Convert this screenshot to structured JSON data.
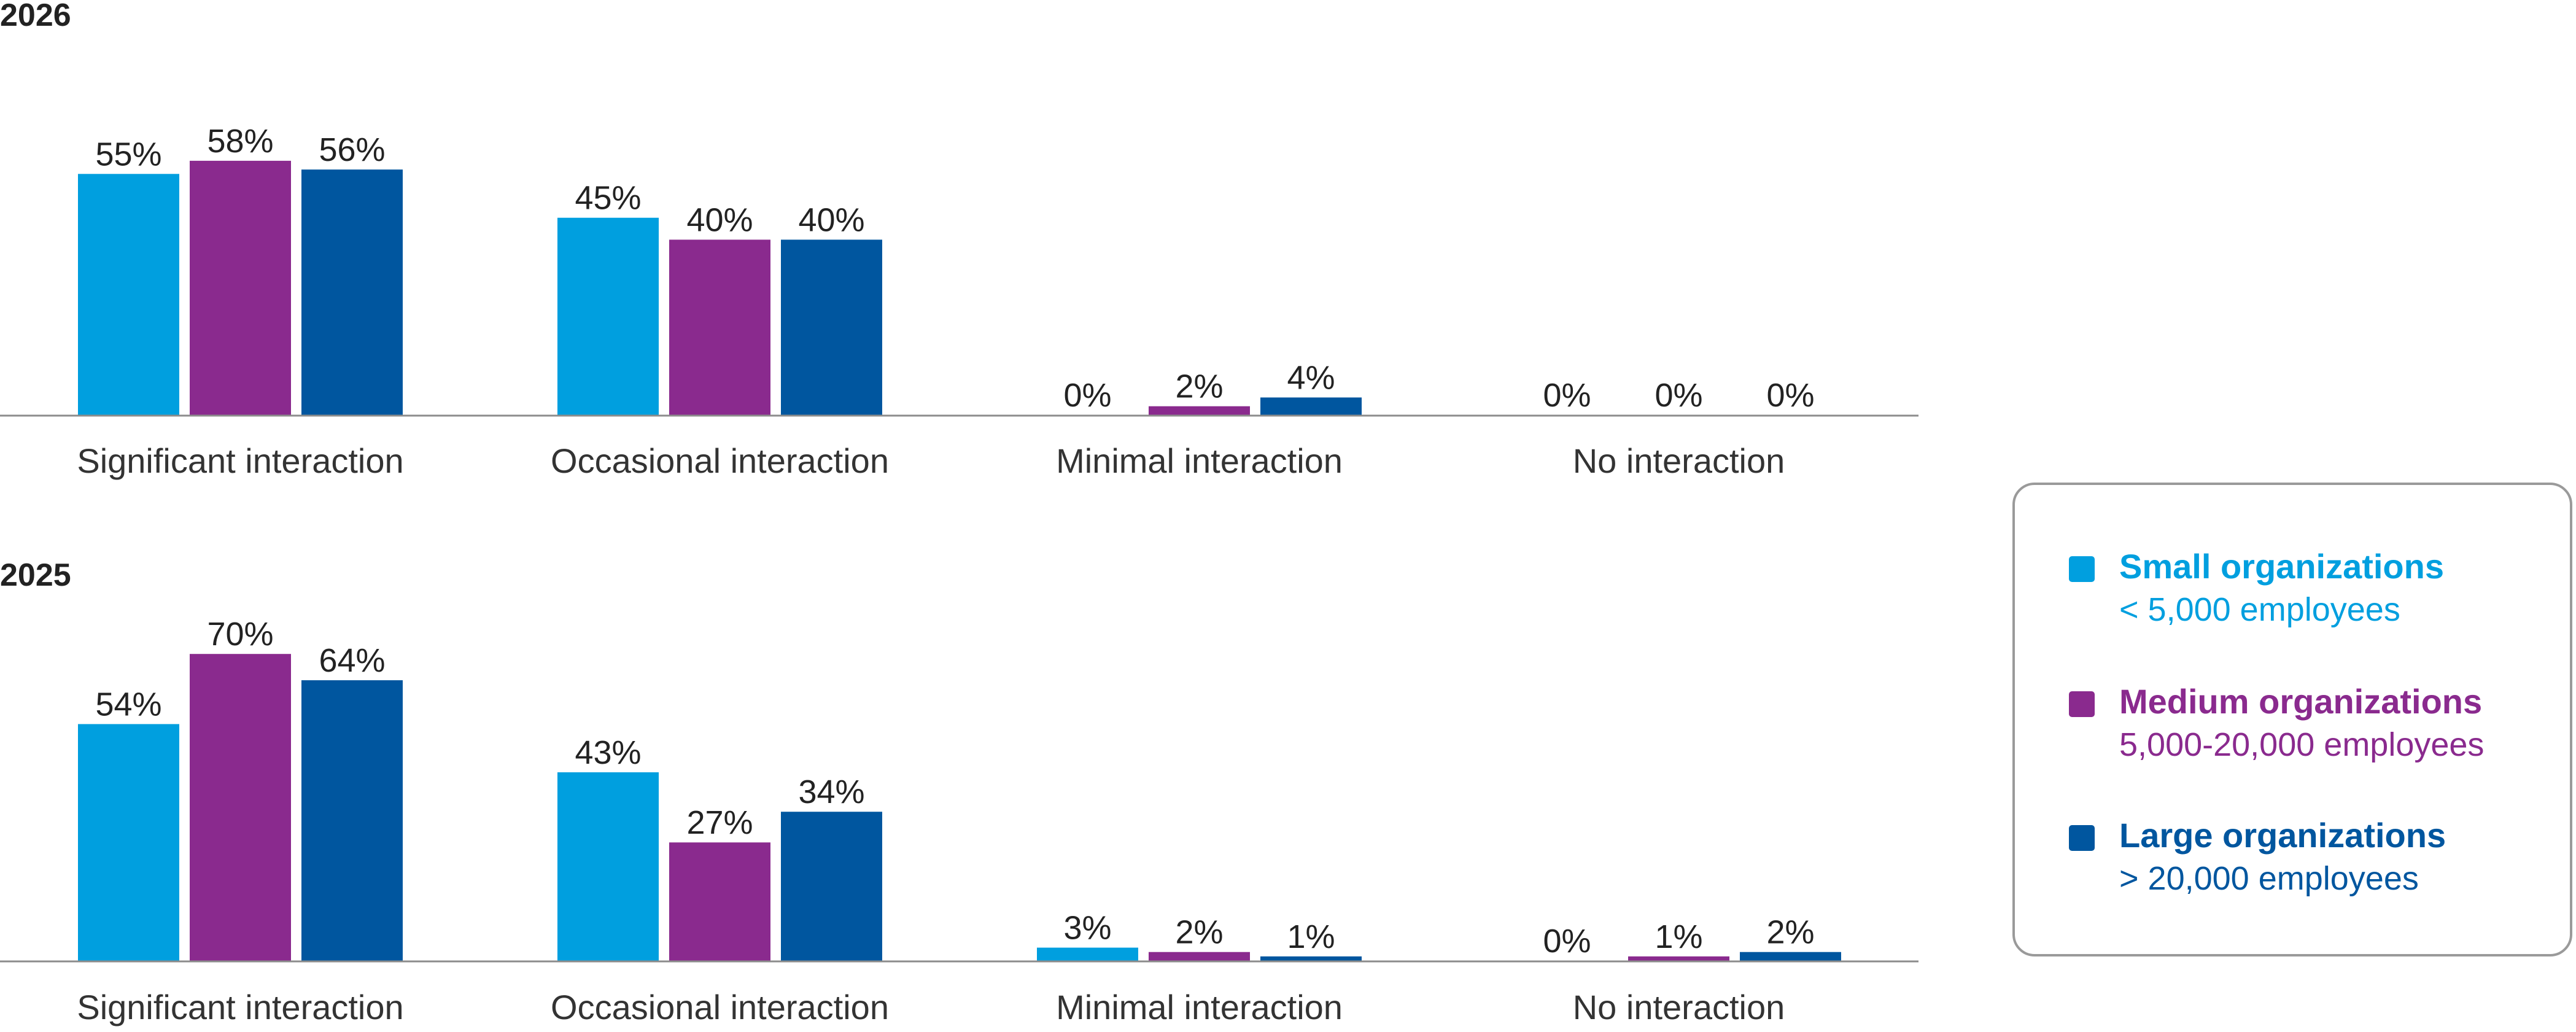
{
  "chart_data": [
    {
      "type": "bar",
      "title": "2026",
      "categories": [
        "Significant interaction",
        "Occasional interaction",
        "Minimal interaction",
        "No interaction"
      ],
      "series": [
        {
          "name": "Small organizations",
          "values": [
            55,
            45,
            0,
            0
          ]
        },
        {
          "name": "Medium organizations",
          "values": [
            58,
            40,
            2,
            0
          ]
        },
        {
          "name": "Large organizations",
          "values": [
            56,
            40,
            4,
            0
          ]
        }
      ],
      "value_suffix": "%",
      "ylim": [
        0,
        70
      ],
      "grid": false
    },
    {
      "type": "bar",
      "title": "2025",
      "categories": [
        "Significant interaction",
        "Occasional interaction",
        "Minimal interaction",
        "No interaction"
      ],
      "series": [
        {
          "name": "Small organizations",
          "values": [
            54,
            43,
            3,
            0
          ]
        },
        {
          "name": "Medium organizations",
          "values": [
            70,
            27,
            2,
            1
          ]
        },
        {
          "name": "Large organizations",
          "values": [
            64,
            34,
            1,
            2
          ]
        }
      ],
      "value_suffix": "%",
      "ylim": [
        0,
        70
      ],
      "grid": false
    }
  ],
  "legend": {
    "placement": "right",
    "items": [
      {
        "name": "Small organizations",
        "sub": "< 5,000 employees",
        "color": "#009fdf"
      },
      {
        "name": "Medium organizations",
        "sub": "5,000-20,000 employees",
        "color": "#8a2a8e"
      },
      {
        "name": "Large organizations",
        "sub": "> 20,000 employees",
        "color": "#00569f"
      }
    ]
  },
  "colors": {
    "axis": "#8c8c8c",
    "text": "#222222",
    "legend_border": "#9a9a9a"
  }
}
